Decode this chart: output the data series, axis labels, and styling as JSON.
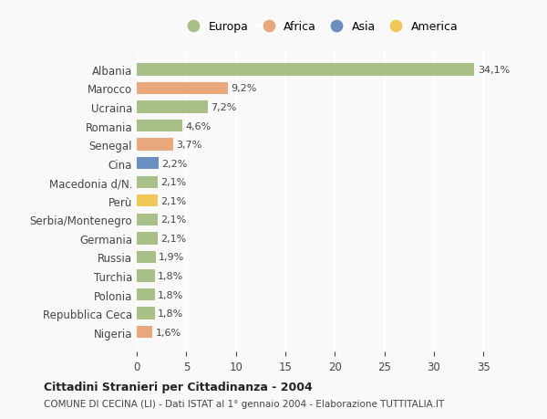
{
  "countries": [
    "Albania",
    "Marocco",
    "Ucraina",
    "Romania",
    "Senegal",
    "Cina",
    "Macedonia d/N.",
    "Perù",
    "Serbia/Montenegro",
    "Germania",
    "Russia",
    "Turchia",
    "Polonia",
    "Repubblica Ceca",
    "Nigeria"
  ],
  "values": [
    34.1,
    9.2,
    7.2,
    4.6,
    3.7,
    2.2,
    2.1,
    2.1,
    2.1,
    2.1,
    1.9,
    1.8,
    1.8,
    1.8,
    1.6
  ],
  "labels": [
    "34,1%",
    "9,2%",
    "7,2%",
    "4,6%",
    "3,7%",
    "2,2%",
    "2,1%",
    "2,1%",
    "2,1%",
    "2,1%",
    "1,9%",
    "1,8%",
    "1,8%",
    "1,8%",
    "1,6%"
  ],
  "continents": [
    "Europa",
    "Africa",
    "Europa",
    "Europa",
    "Africa",
    "Asia",
    "Europa",
    "America",
    "Europa",
    "Europa",
    "Europa",
    "Europa",
    "Europa",
    "Europa",
    "Africa"
  ],
  "colors": {
    "Europa": "#a8c087",
    "Africa": "#e8a87c",
    "Asia": "#6b8fbf",
    "America": "#f0c85a"
  },
  "legend_order": [
    "Europa",
    "Africa",
    "Asia",
    "America"
  ],
  "xlim": [
    0,
    37
  ],
  "xticks": [
    0,
    5,
    10,
    15,
    20,
    25,
    30,
    35
  ],
  "title": "Cittadini Stranieri per Cittadinanza - 2004",
  "subtitle": "COMUNE DI CECINA (LI) - Dati ISTAT al 1° gennaio 2004 - Elaborazione TUTTITALIA.IT",
  "background_color": "#f9f9f9",
  "grid_color": "#ffffff",
  "bar_height": 0.65
}
